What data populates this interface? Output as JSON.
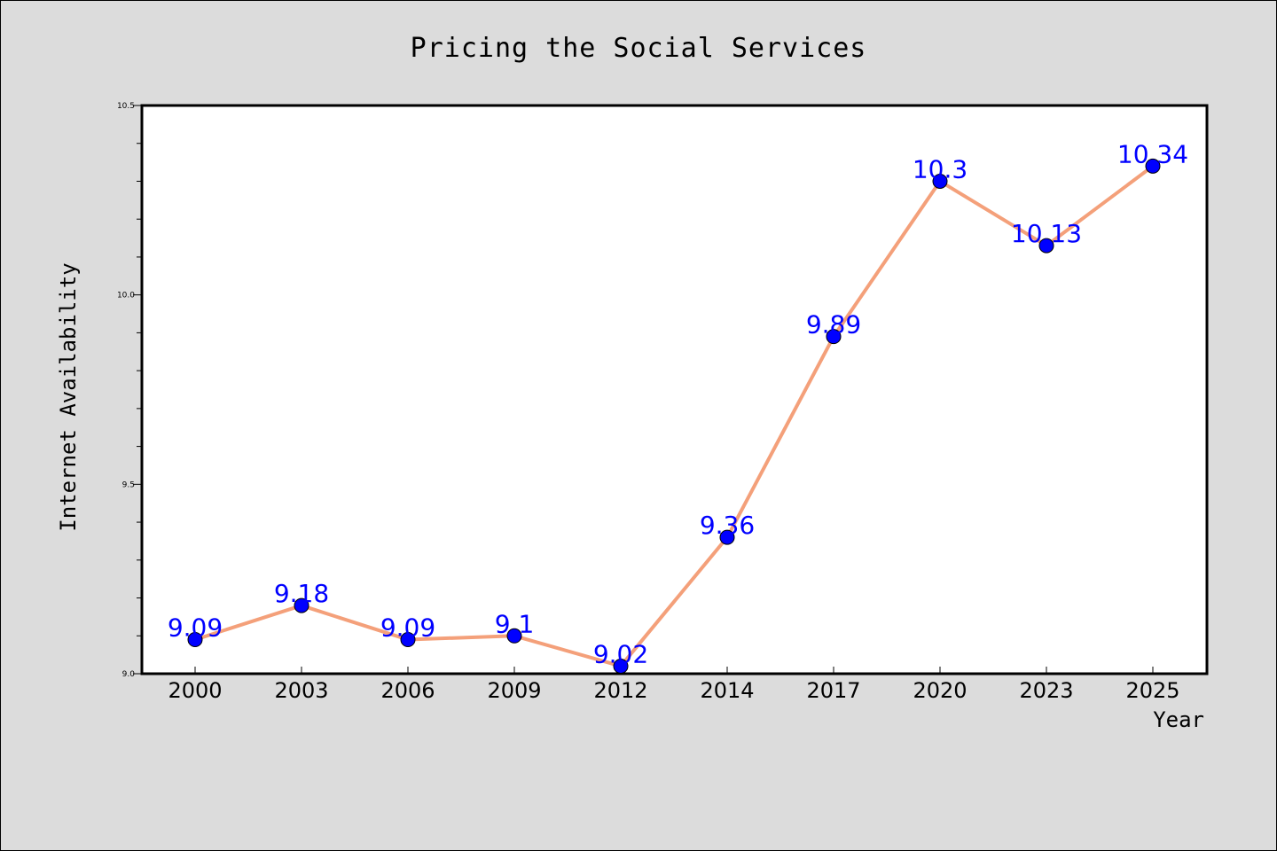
{
  "chart_data": {
    "type": "line",
    "title": "Pricing the Social Services",
    "xlabel": "Year",
    "ylabel": "Internet Availability",
    "categories": [
      "2000",
      "2003",
      "2006",
      "2009",
      "2012",
      "2014",
      "2017",
      "2020",
      "2023",
      "2025"
    ],
    "series": [
      {
        "values": [
          9.09,
          9.18,
          9.09,
          9.1,
          9.02,
          9.36,
          9.89,
          10.3,
          10.13,
          10.34
        ],
        "line_color": "#f4a07a",
        "marker_color": "#0000ff"
      }
    ],
    "data_labels": [
      "9.09",
      "9.18",
      "9.09",
      "9.1",
      "9.02",
      "9.36",
      "9.89",
      "10.3",
      "10.13",
      "10.34"
    ],
    "ylim": [
      9.0,
      10.5
    ],
    "yticks": [
      "9.0",
      "9.5",
      "10.0",
      "10.5"
    ],
    "grid": false,
    "legend": "none",
    "colors": {
      "background": "#dcdcdc",
      "plot_background": "#ffffff",
      "data_label": "#0000ff"
    }
  }
}
